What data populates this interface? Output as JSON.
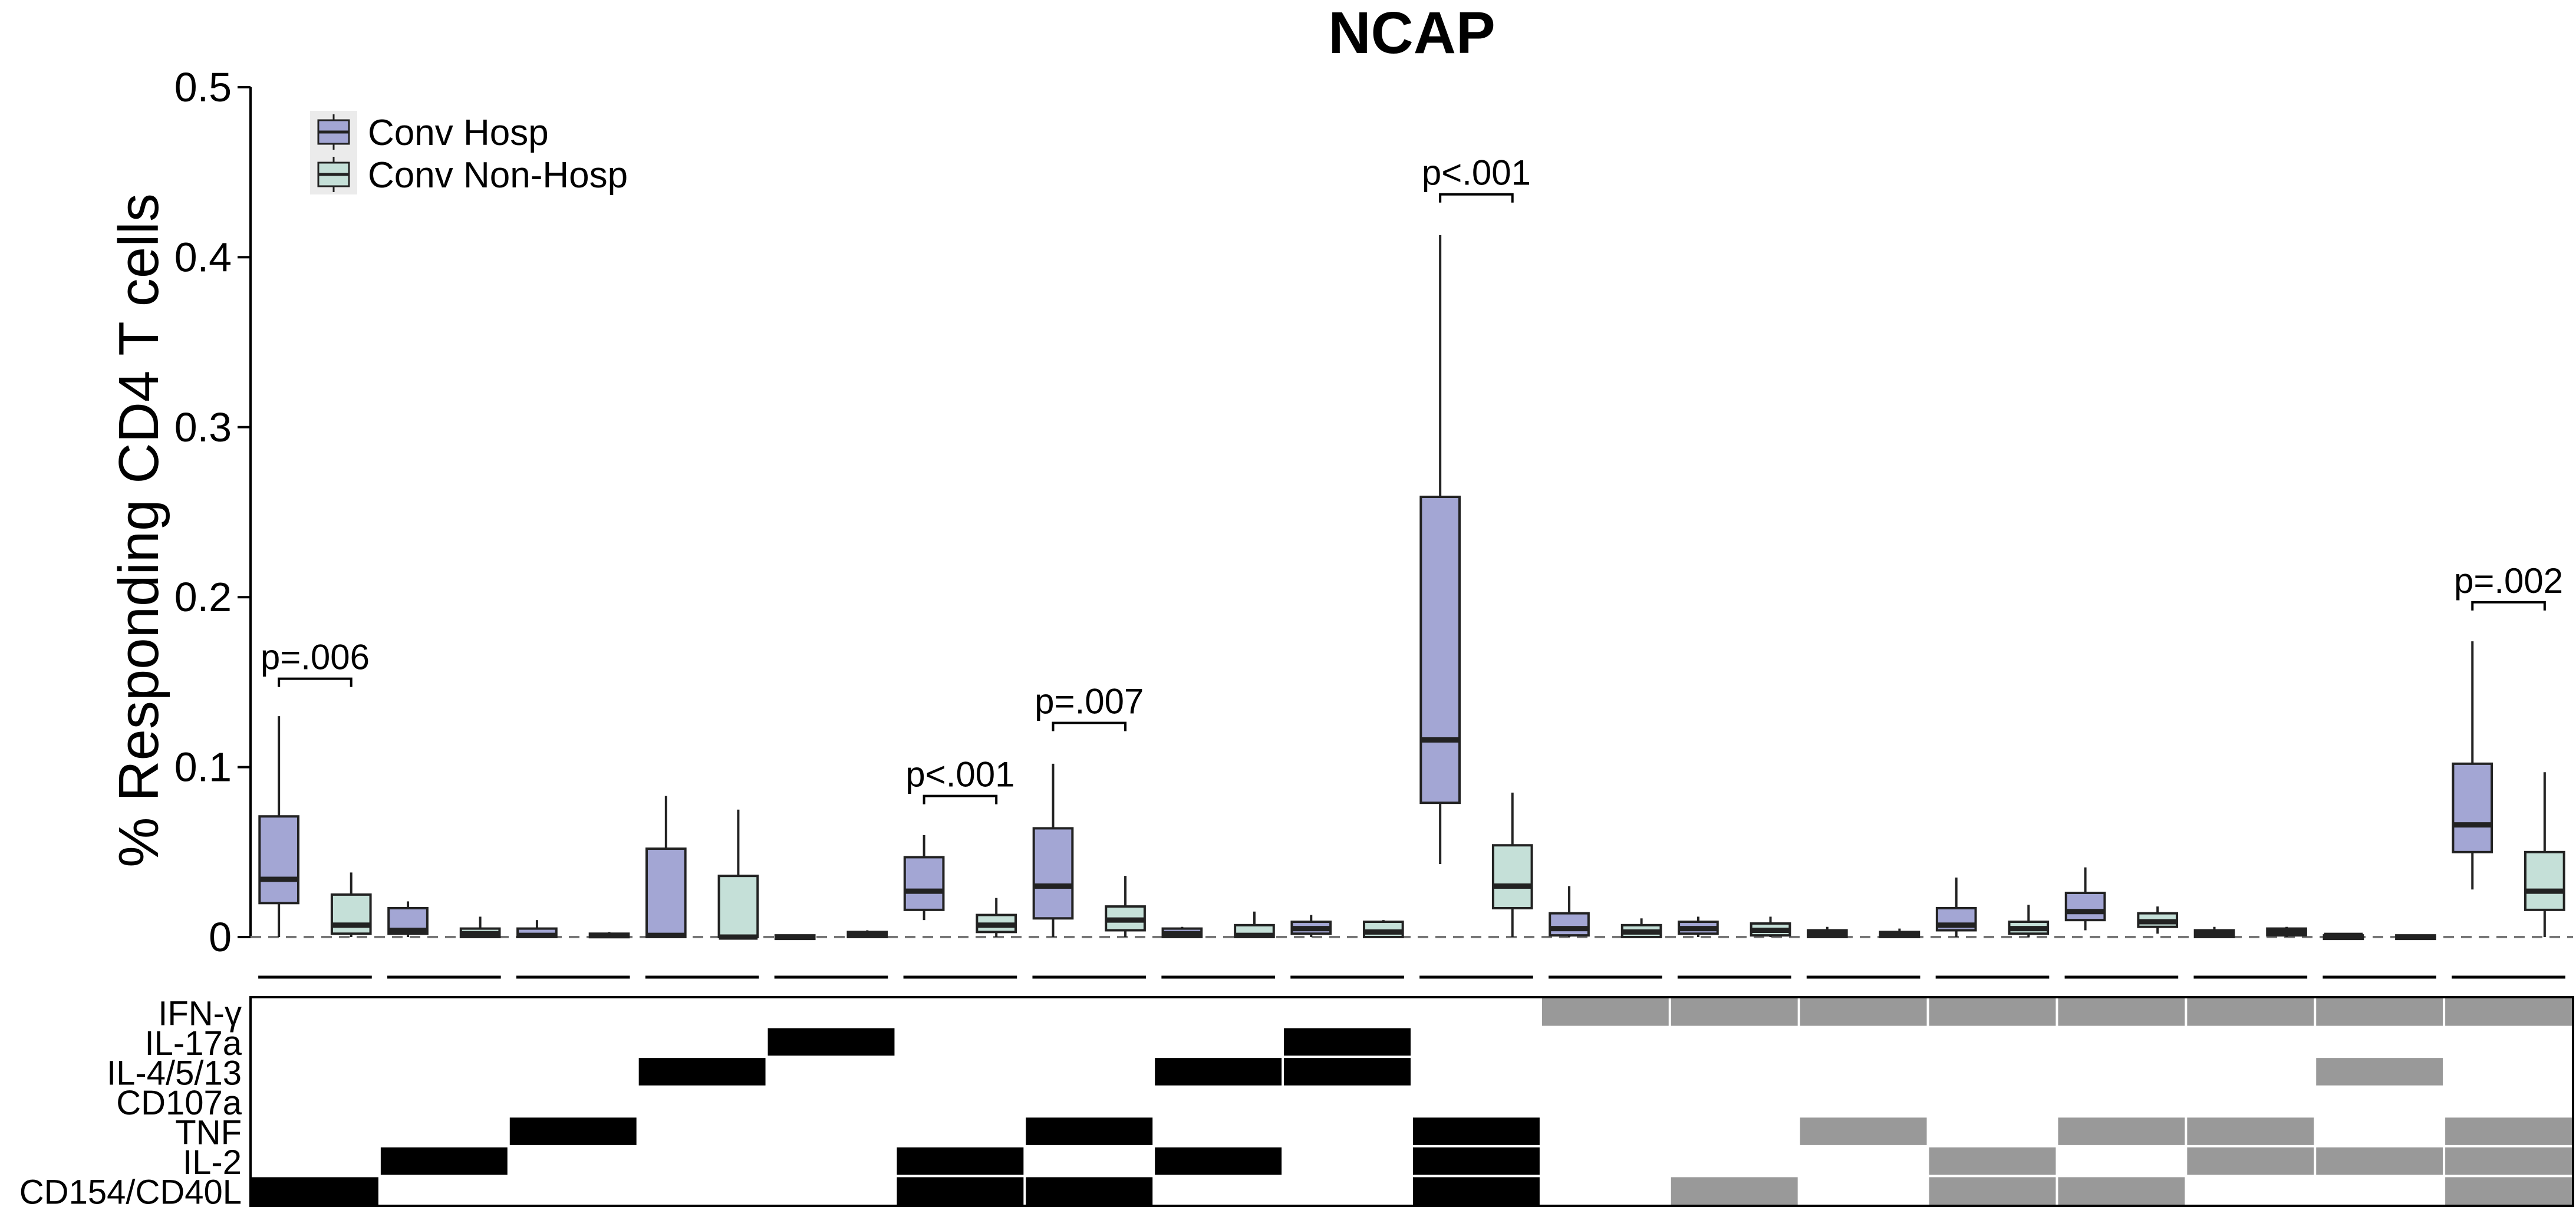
{
  "chart_data": {
    "type": "box",
    "title": "NCAP",
    "ylabel": "% Responding CD4 T cells",
    "xlabel": "",
    "ylim": [
      0,
      0.5
    ],
    "yticks": [
      {
        "value": 0,
        "label": "0"
      },
      {
        "value": 0.1,
        "label": "0.1"
      },
      {
        "value": 0.2,
        "label": "0.2"
      },
      {
        "value": 0.3,
        "label": "0.3"
      },
      {
        "value": 0.4,
        "label": "0.4"
      },
      {
        "value": 0.5,
        "label": "0.5"
      }
    ],
    "reference_line": {
      "value": 0,
      "style": "dashed"
    },
    "legend": {
      "position": "top-left",
      "entries": [
        {
          "label": "Conv Hosp",
          "color": "#a3a6d4"
        },
        {
          "label": "Conv Non-Hosp",
          "color": "#c5e0d8"
        }
      ]
    },
    "series": [
      {
        "name": "Conv Hosp",
        "color": "#a3a6d4",
        "boxes": [
          {
            "whislo": 0,
            "q1": 0.02,
            "med": 0.034,
            "q3": 0.071,
            "whishi": 0.13
          },
          {
            "whislo": 0,
            "q1": 0.002,
            "med": 0.004,
            "q3": 0.017,
            "whishi": 0.021
          },
          {
            "whislo": 0,
            "q1": 0.0,
            "med": 0.001,
            "q3": 0.005,
            "whishi": 0.01
          },
          {
            "whislo": 0,
            "q1": 0.0,
            "med": 0.001,
            "q3": 0.052,
            "whishi": 0.083
          },
          {
            "whislo": 0,
            "q1": 0.0,
            "med": 0.0,
            "q3": 0.001,
            "whishi": 0.001
          },
          {
            "whislo": 0.01,
            "q1": 0.016,
            "med": 0.027,
            "q3": 0.047,
            "whishi": 0.06
          },
          {
            "whislo": 0,
            "q1": 0.011,
            "med": 0.03,
            "q3": 0.064,
            "whishi": 0.102
          },
          {
            "whislo": 0,
            "q1": 0.0,
            "med": 0.002,
            "q3": 0.005,
            "whishi": 0.006
          },
          {
            "whislo": 0,
            "q1": 0.002,
            "med": 0.005,
            "q3": 0.009,
            "whishi": 0.013
          },
          {
            "whislo": 0.043,
            "q1": 0.079,
            "med": 0.116,
            "q3": 0.259,
            "whishi": 0.413
          },
          {
            "whislo": 0,
            "q1": 0.001,
            "med": 0.005,
            "q3": 0.014,
            "whishi": 0.03
          },
          {
            "whislo": 0,
            "q1": 0.002,
            "med": 0.005,
            "q3": 0.009,
            "whishi": 0.012
          },
          {
            "whislo": 0,
            "q1": 0.0,
            "med": 0.002,
            "q3": 0.004,
            "whishi": 0.006
          },
          {
            "whislo": 0,
            "q1": 0.004,
            "med": 0.007,
            "q3": 0.017,
            "whishi": 0.035
          },
          {
            "whislo": 0.004,
            "q1": 0.01,
            "med": 0.015,
            "q3": 0.026,
            "whishi": 0.041
          },
          {
            "whislo": 0,
            "q1": 0.0,
            "med": 0.002,
            "q3": 0.004,
            "whishi": 0.006
          },
          {
            "whislo": 0,
            "q1": 0.0,
            "med": 0.001,
            "q3": 0.001,
            "whishi": 0.002
          },
          {
            "whislo": 0.028,
            "q1": 0.05,
            "med": 0.066,
            "q3": 0.102,
            "whishi": 0.174
          }
        ]
      },
      {
        "name": "Conv Non-Hosp",
        "color": "#c5e0d8",
        "boxes": [
          {
            "whislo": 0,
            "q1": 0.002,
            "med": 0.007,
            "q3": 0.025,
            "whishi": 0.038
          },
          {
            "whislo": 0,
            "q1": 0.0,
            "med": 0.002,
            "q3": 0.005,
            "whishi": 0.012
          },
          {
            "whislo": 0,
            "q1": 0.0,
            "med": 0.001,
            "q3": 0.002,
            "whishi": 0.003
          },
          {
            "whislo": 0,
            "q1": 0.0,
            "med": 0.0,
            "q3": 0.036,
            "whishi": 0.075
          },
          {
            "whislo": 0,
            "q1": 0.0,
            "med": 0.001,
            "q3": 0.003,
            "whishi": 0.004
          },
          {
            "whislo": 0,
            "q1": 0.003,
            "med": 0.007,
            "q3": 0.013,
            "whishi": 0.023
          },
          {
            "whislo": 0,
            "q1": 0.004,
            "med": 0.01,
            "q3": 0.018,
            "whishi": 0.036
          },
          {
            "whislo": 0,
            "q1": 0.0,
            "med": 0.001,
            "q3": 0.007,
            "whishi": 0.015
          },
          {
            "whislo": 0,
            "q1": 0.0,
            "med": 0.003,
            "q3": 0.009,
            "whishi": 0.01
          },
          {
            "whislo": 0,
            "q1": 0.017,
            "med": 0.03,
            "q3": 0.054,
            "whishi": 0.085
          },
          {
            "whislo": 0,
            "q1": 0.0,
            "med": 0.003,
            "q3": 0.007,
            "whishi": 0.011
          },
          {
            "whislo": 0,
            "q1": 0.001,
            "med": 0.004,
            "q3": 0.008,
            "whishi": 0.012
          },
          {
            "whislo": 0,
            "q1": 0.0,
            "med": 0.001,
            "q3": 0.003,
            "whishi": 0.005
          },
          {
            "whislo": 0,
            "q1": 0.002,
            "med": 0.005,
            "q3": 0.009,
            "whishi": 0.019
          },
          {
            "whislo": 0.002,
            "q1": 0.006,
            "med": 0.009,
            "q3": 0.014,
            "whishi": 0.018
          },
          {
            "whislo": 0,
            "q1": 0.001,
            "med": 0.003,
            "q3": 0.005,
            "whishi": 0.006
          },
          {
            "whislo": 0,
            "q1": 0.0,
            "med": 0.0,
            "q3": 0.001,
            "whishi": 0.001
          },
          {
            "whislo": 0,
            "q1": 0.016,
            "med": 0.027,
            "q3": 0.05,
            "whishi": 0.097
          }
        ]
      }
    ],
    "significance": [
      {
        "group": 0,
        "label": "p=.006",
        "y": 0.152
      },
      {
        "group": 5,
        "label": "p<.001",
        "y": 0.083
      },
      {
        "group": 6,
        "label": "p=.007",
        "y": 0.126
      },
      {
        "group": 9,
        "label": "p<.001",
        "y": 0.437
      },
      {
        "group": 17,
        "label": "p=.002",
        "y": 0.197
      }
    ],
    "function_matrix": {
      "rows": [
        "IFN-γ",
        "IL-17a",
        "IL-4/5/13",
        "CD107a",
        "TNF",
        "IL-2",
        "CD154/CD40L"
      ],
      "colors": {
        "1": "#000000",
        "2": "#999999"
      },
      "cells": [
        [
          0,
          0,
          0,
          0,
          0,
          0,
          0,
          0,
          0,
          0,
          2,
          2,
          2,
          2,
          2,
          2,
          2,
          2
        ],
        [
          0,
          0,
          0,
          0,
          1,
          0,
          0,
          0,
          1,
          0,
          0,
          0,
          0,
          0,
          0,
          0,
          0,
          0
        ],
        [
          0,
          0,
          0,
          1,
          0,
          0,
          0,
          1,
          1,
          0,
          0,
          0,
          0,
          0,
          0,
          0,
          2,
          0
        ],
        [
          0,
          0,
          0,
          0,
          0,
          0,
          0,
          0,
          0,
          0,
          0,
          0,
          0,
          0,
          0,
          0,
          0,
          0
        ],
        [
          0,
          0,
          1,
          0,
          0,
          0,
          1,
          0,
          0,
          1,
          0,
          0,
          2,
          0,
          2,
          2,
          0,
          2
        ],
        [
          0,
          1,
          0,
          0,
          0,
          1,
          0,
          1,
          0,
          1,
          0,
          0,
          0,
          2,
          0,
          2,
          2,
          2
        ],
        [
          1,
          0,
          0,
          0,
          0,
          1,
          1,
          0,
          0,
          1,
          0,
          2,
          0,
          2,
          2,
          0,
          0,
          2
        ]
      ]
    }
  }
}
